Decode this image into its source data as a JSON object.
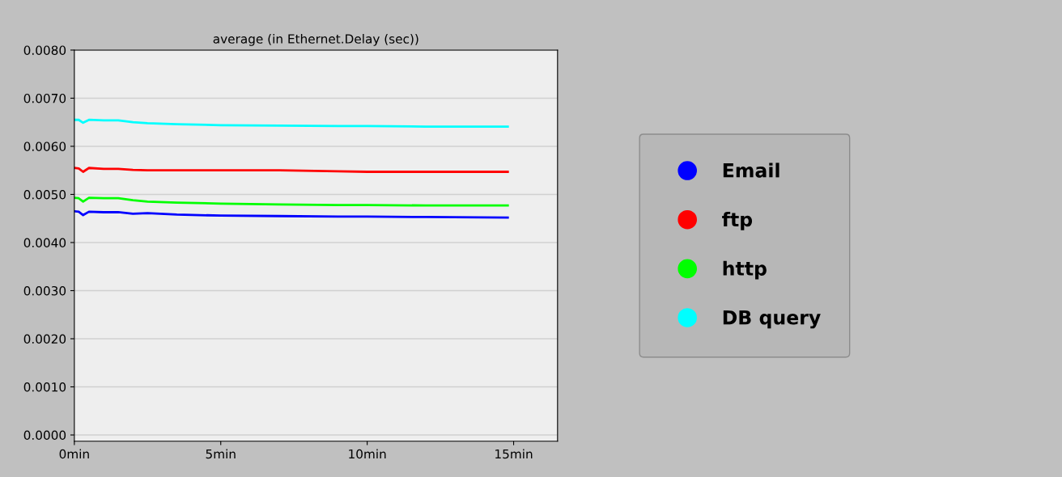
{
  "chart_data": {
    "type": "line",
    "title": "average (in Ethernet.Delay (sec))",
    "x": [
      0,
      0.15,
      0.3,
      0.5,
      1.0,
      1.5,
      2.0,
      2.5,
      3.5,
      5,
      7,
      9,
      10,
      12,
      14.8
    ],
    "series": [
      {
        "name": "Email",
        "color": "#0000ff",
        "values": [
          0.00465,
          0.00464,
          0.00457,
          0.00464,
          0.00463,
          0.00463,
          0.0046,
          0.00461,
          0.00458,
          0.00456,
          0.00455,
          0.00454,
          0.00454,
          0.00453,
          0.00452
        ]
      },
      {
        "name": "ftp",
        "color": "#ff0000",
        "values": [
          0.00555,
          0.00554,
          0.00547,
          0.00555,
          0.00553,
          0.00553,
          0.00551,
          0.0055,
          0.0055,
          0.0055,
          0.0055,
          0.00548,
          0.00547,
          0.00547,
          0.00547
        ]
      },
      {
        "name": "http",
        "color": "#00ff00",
        "values": [
          0.00493,
          0.00492,
          0.00485,
          0.00493,
          0.00492,
          0.00492,
          0.00488,
          0.00485,
          0.00483,
          0.00481,
          0.00479,
          0.00478,
          0.00478,
          0.00477,
          0.00477
        ]
      },
      {
        "name": "DB query",
        "color": "#00ffff",
        "values": [
          0.00655,
          0.00655,
          0.00649,
          0.00655,
          0.00654,
          0.00654,
          0.0065,
          0.00648,
          0.00646,
          0.00644,
          0.00643,
          0.00642,
          0.00642,
          0.00641,
          0.00641
        ]
      }
    ],
    "xlim": [
      0,
      16.5
    ],
    "xticks": [
      {
        "value": 0,
        "label": "0min"
      },
      {
        "value": 5,
        "label": "5min"
      },
      {
        "value": 10,
        "label": "10min"
      },
      {
        "value": 15,
        "label": "15min"
      }
    ],
    "ylim": [
      -0.00013,
      0.008
    ],
    "yticks": [
      {
        "value": 0,
        "label": "0.0000"
      },
      {
        "value": 0.001,
        "label": "0.0010"
      },
      {
        "value": 0.002,
        "label": "0.0020"
      },
      {
        "value": 0.003,
        "label": "0.0030"
      },
      {
        "value": 0.004,
        "label": "0.0040"
      },
      {
        "value": 0.005,
        "label": "0.0050"
      },
      {
        "value": 0.006,
        "label": "0.0060"
      },
      {
        "value": 0.007,
        "label": "0.0070"
      },
      {
        "value": 0.008,
        "label": "0.0080"
      }
    ],
    "grid": "y",
    "legend": "right",
    "marker": "none",
    "line_style": "solid"
  }
}
